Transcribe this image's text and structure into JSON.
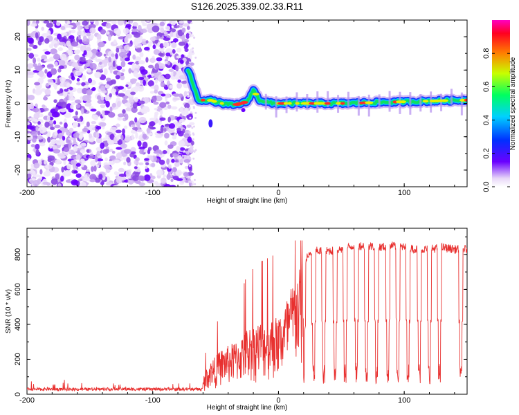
{
  "chart_data": [
    {
      "type": "heatmap",
      "title": "S126.2025.339.02.33.R11",
      "xlabel": "Height of straight line (km)",
      "ylabel": "Frequency (Hz)",
      "xlim": [
        -200,
        150
      ],
      "ylim": [
        -25,
        25
      ],
      "xticks": [
        "-200",
        "-100",
        "0",
        "100"
      ],
      "yticks": [
        "-20",
        "-10",
        "0",
        "10",
        "20"
      ],
      "colorbar": {
        "label": "Normalized spectral amplitude",
        "range": [
          0,
          1
        ],
        "ticks": [
          "0.0",
          "0.2",
          "0.4",
          "0.6",
          "0.8"
        ],
        "colormap": "rainbow (purple-blue-cyan-green-yellow-red-magenta)"
      },
      "description_values": {
        "noise_region_km": [
          -200,
          -72
        ],
        "tone_frequency_hz": [
          [
            -72,
            10
          ],
          [
            -68,
            6
          ],
          [
            -64,
            1
          ],
          [
            -55,
            1
          ],
          [
            -45,
            0
          ],
          [
            -35,
            -0.5
          ],
          [
            -25,
            0.5
          ],
          [
            -20,
            4
          ],
          [
            -15,
            1
          ],
          [
            -5,
            0
          ],
          [
            0,
            0
          ],
          [
            50,
            0
          ],
          [
            100,
            0.5
          ],
          [
            150,
            1
          ]
        ]
      }
    },
    {
      "type": "line",
      "title": "",
      "xlabel": "Height of straight line (km)",
      "ylabel": "SNR (10 * v/v)",
      "xlim": [
        -200,
        150
      ],
      "ylim": [
        0,
        950
      ],
      "xticks": [
        "-200",
        "-100",
        "0",
        "100"
      ],
      "yticks": [
        "0",
        "200",
        "400",
        "600",
        "800"
      ],
      "series": [
        {
          "name": "SNR",
          "color": "#e8302f",
          "x": [
            -200,
            -180,
            -160,
            -140,
            -120,
            -100,
            -80,
            -70,
            -60,
            -55,
            -50,
            -45,
            -40,
            -35,
            -30,
            -25,
            -20,
            -15,
            -10,
            -5,
            0,
            5,
            10,
            15,
            20,
            25,
            30,
            40,
            50,
            60,
            70,
            80,
            90,
            100,
            110,
            120,
            130,
            140,
            150
          ],
          "values": [
            25,
            25,
            30,
            28,
            25,
            28,
            30,
            40,
            100,
            180,
            220,
            260,
            280,
            300,
            320,
            380,
            400,
            420,
            430,
            440,
            450,
            520,
            620,
            700,
            760,
            800,
            820,
            820,
            830,
            850,
            850,
            840,
            850,
            840,
            830,
            830,
            840,
            830,
            830
          ]
        }
      ],
      "dropouts_km": [
        20,
        28,
        36,
        45,
        53,
        62,
        70,
        78,
        87,
        95,
        103,
        112,
        120,
        128,
        145
      ]
    }
  ],
  "colors": {
    "line": "#e8302f",
    "noise": "#8a4ce0",
    "tone_core": "#e81e3a"
  }
}
